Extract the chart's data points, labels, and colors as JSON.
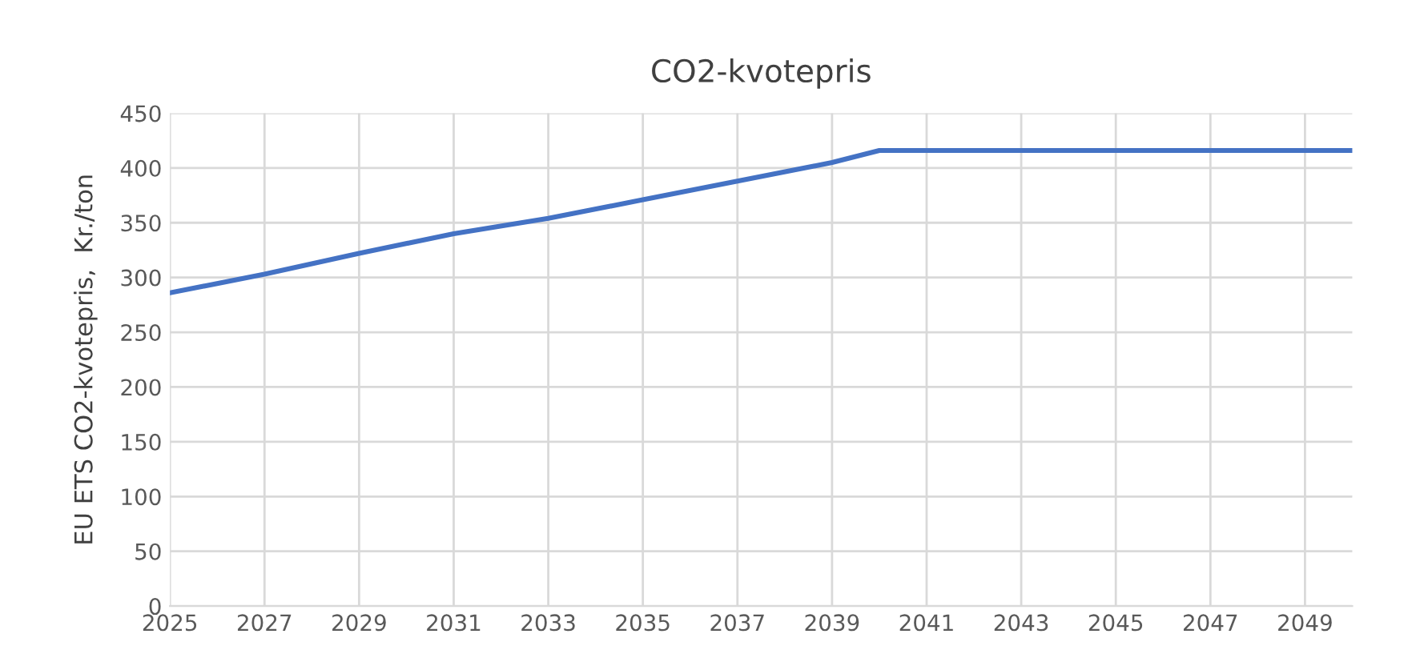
{
  "chart_data": {
    "type": "line",
    "title": "CO2-kvotepris",
    "ylabel": "EU ETS CO2-kvotepris,  Kr./ton",
    "x": [
      2025,
      2027,
      2029,
      2031,
      2033,
      2035,
      2037,
      2039,
      2040,
      2050
    ],
    "series": [
      {
        "color": "#4472c4",
        "values": [
          286,
          303,
          322,
          340,
          354,
          371,
          388,
          405,
          416,
          416
        ]
      }
    ],
    "xlim": [
      2025,
      2050
    ],
    "xticks": [
      2025,
      2027,
      2029,
      2031,
      2033,
      2035,
      2037,
      2039,
      2041,
      2043,
      2045,
      2047,
      2049
    ],
    "ylim": [
      0,
      450
    ],
    "yticks": [
      0,
      50,
      100,
      150,
      200,
      250,
      300,
      350,
      400,
      450
    ],
    "grid": true
  }
}
